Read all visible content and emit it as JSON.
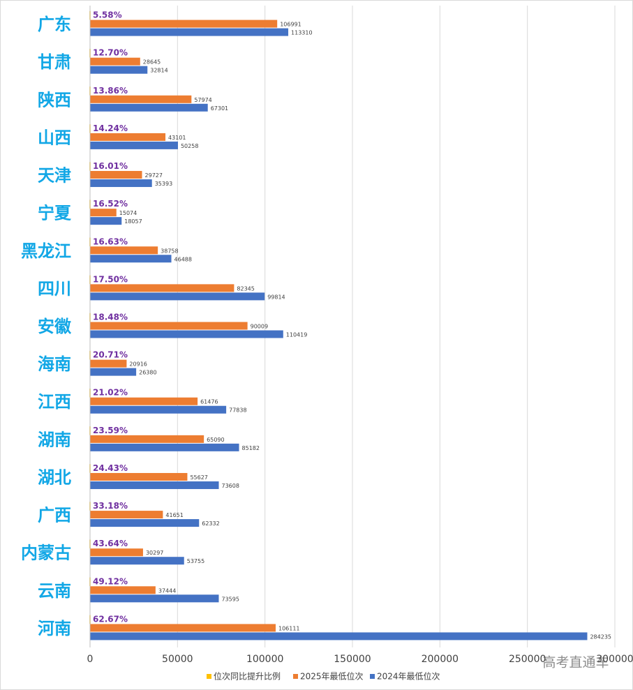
{
  "chart_data": {
    "type": "bar",
    "orientation": "horizontal",
    "categories": [
      "广东",
      "甘肃",
      "陕西",
      "山西",
      "天津",
      "宁夏",
      "黑龙江",
      "四川",
      "安徽",
      "海南",
      "江西",
      "湖南",
      "湖北",
      "广西",
      "内蒙古",
      "云南",
      "河南"
    ],
    "series": [
      {
        "name": "位次同比提升比例",
        "color": "#ffc000",
        "values": [
          0.0558,
          0.127,
          0.1386,
          0.1424,
          0.1601,
          0.1652,
          0.1663,
          0.175,
          0.1848,
          0.2071,
          0.2102,
          0.2359,
          0.2443,
          0.3318,
          0.4364,
          0.4912,
          0.6267
        ],
        "value_labels": [
          "5.58%",
          "12.70%",
          "13.86%",
          "14.24%",
          "16.01%",
          "16.52%",
          "16.63%",
          "17.50%",
          "18.48%",
          "20.71%",
          "21.02%",
          "23.59%",
          "24.43%",
          "33.18%",
          "43.64%",
          "49.12%",
          "62.67%"
        ]
      },
      {
        "name": "2025年最低位次",
        "color": "#ed7d31",
        "values": [
          106991,
          28645,
          57974,
          43101,
          29727,
          15074,
          38758,
          82345,
          90009,
          20916,
          61476,
          65090,
          55627,
          41651,
          30297,
          37444,
          106111
        ]
      },
      {
        "name": "2024年最低位次",
        "color": "#4472c4",
        "values": [
          113310,
          32814,
          67301,
          50258,
          35393,
          18057,
          46488,
          99814,
          110419,
          26380,
          77838,
          85182,
          73608,
          62332,
          53755,
          73595,
          284235
        ]
      }
    ],
    "xlim": [
      0,
      300000
    ],
    "xticks": [
      0,
      50000,
      100000,
      150000,
      200000,
      250000,
      300000
    ],
    "grid": true,
    "legend": "bottom",
    "watermark": "高考直通车"
  }
}
